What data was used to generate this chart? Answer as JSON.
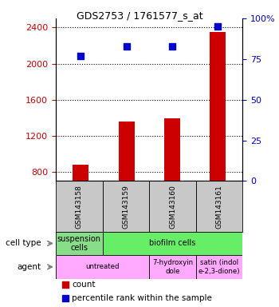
{
  "title": "GDS2753 / 1761577_s_at",
  "samples": [
    "GSM143158",
    "GSM143159",
    "GSM143160",
    "GSM143161"
  ],
  "counts": [
    880,
    1360,
    1390,
    2350
  ],
  "percentile_ranks": [
    77,
    83,
    83,
    95
  ],
  "ylim_left": [
    700,
    2500
  ],
  "ylim_right": [
    0,
    100
  ],
  "yticks_left": [
    800,
    1200,
    1600,
    2000,
    2400
  ],
  "ytick_labels_left": [
    "800",
    "1200",
    "1600",
    "2000",
    "2400"
  ],
  "yticks_right": [
    0,
    25,
    50,
    75,
    100
  ],
  "ytick_labels_right": [
    "0",
    "25",
    "50",
    "75",
    "100%"
  ],
  "bar_color": "#cc0000",
  "dot_color": "#0000cc",
  "left_tick_color": "#cc0000",
  "right_tick_color": "#0000cc",
  "sample_bg_color": "#c8c8c8",
  "cell_spans": [
    {
      "start": 0,
      "end": 1,
      "label": "suspension\ncells",
      "color": "#88dd88"
    },
    {
      "start": 1,
      "end": 4,
      "label": "biofilm cells",
      "color": "#66ee66"
    }
  ],
  "agent_spans": [
    {
      "start": 0,
      "end": 2,
      "label": "untreated",
      "color": "#ffaaff"
    },
    {
      "start": 2,
      "end": 3,
      "label": "7-hydroxyin\ndole",
      "color": "#ffaaff"
    },
    {
      "start": 3,
      "end": 4,
      "label": "satin (indol\ne-2,3-dione)",
      "color": "#ffaaff"
    }
  ],
  "dot_size": 35,
  "bar_width": 0.35
}
